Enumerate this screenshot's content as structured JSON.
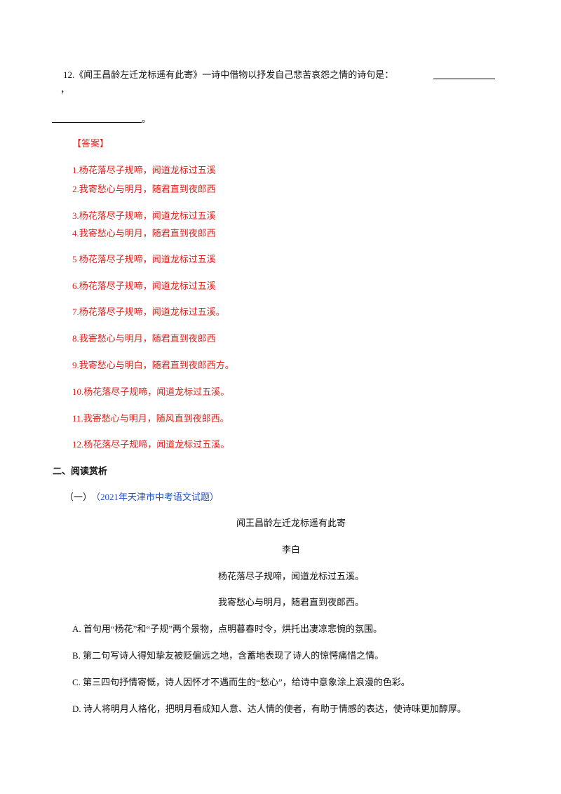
{
  "question": {
    "text": "12.《闻王昌龄左迁龙标遥有此寄》一诗中借物以抒发自己悲苦哀怨之情的诗句是：",
    "comma": "，",
    "period": "。"
  },
  "answer": {
    "label": "【答案】",
    "items": [
      "1.杨花落尽子规啼，闻道龙标过五溪",
      "2.我寄愁心与明月，随君直到夜郎西",
      "3.杨花落尽子规啼，闻道龙标过五溪",
      "4.我寄愁心与明月，随君直到夜郎西",
      "5 杨花落尽子规啼，闻道龙标过五溪",
      "6.杨花落尽子规啼，闻道龙标过五溪",
      "7.杨花落尽子规啼，闻道龙标过五溪。",
      "8.我寄愁心与明月，随君直到夜郎西",
      "9.我寄愁心与明白，随君直到夜郎西方。",
      "10.杨花落尽子规啼，闻道龙标过五溪。",
      "11.我寄愁心与明月，随风直到夜郎西。",
      "12.杨花落尽子规啼，闻道龙标过五溪。"
    ]
  },
  "section": {
    "heading": "二、阅读赏析",
    "number": "（一）",
    "source": "（2021年天津市中考语文试题）"
  },
  "poem": {
    "title": "闻王昌龄左迁龙标遥有此寄",
    "author": "李白",
    "lines": [
      "杨花落尽子规啼，闻道龙标过五溪。",
      "我寄愁心与明月，随君直到夜郎西。"
    ]
  },
  "options": [
    "A.  首句用“杨花”和“子规”两个景物，点明暮春时令，烘托出凄凉悲惋的氛围。",
    "B.  第二句写诗人得知挚友被贬偏远之地，含蓄地表现了诗人的惊愕痛惜之情。",
    "C.  第三四句抒情寄慨，诗人因怀才不遇而生的“愁心”，给诗中意象涂上浪漫的色彩。",
    "D.  诗人将明月人格化，把明月看成知人意、达人情的使者，有助于情感的表达，使诗味更加醇厚。"
  ]
}
